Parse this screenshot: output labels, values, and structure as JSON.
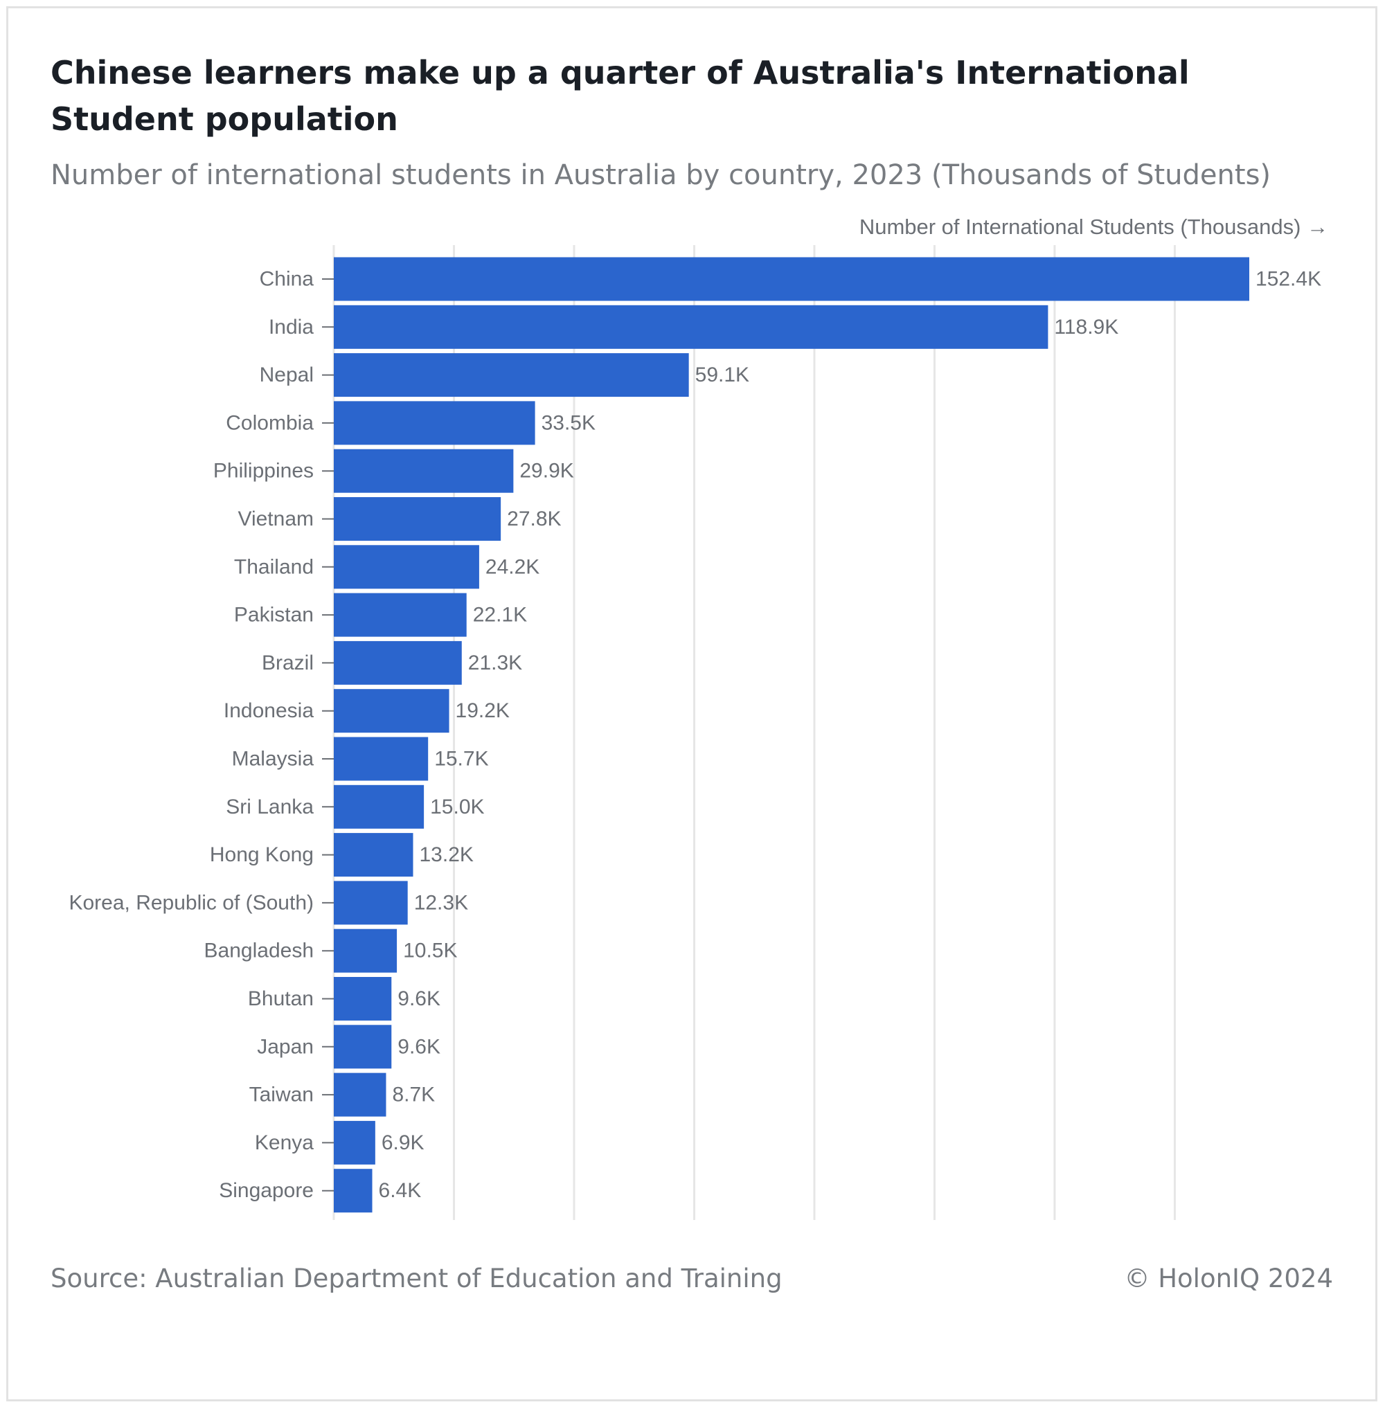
{
  "header": {
    "title": "Chinese learners make up a quarter of Australia's International Student population",
    "subtitle": "Number of international students in Australia by country, 2023 (Thousands of Students)"
  },
  "footer": {
    "source": "Source: Australian Department of Education and Training",
    "copyright": "© HolonIQ 2024"
  },
  "colors": {
    "bar": "#2b65cd",
    "grid": "#e6e6e6",
    "text": "#6b6f75",
    "title": "#1a1f26"
  },
  "chart_data": {
    "type": "bar",
    "orientation": "horizontal",
    "title": "Chinese learners make up a quarter of Australia's International Student population",
    "subtitle": "Number of international students in Australia by country, 2023 (Thousands of Students)",
    "xlabel": "Number of International Students (Thousands) →",
    "ylabel": "",
    "categories": [
      "China",
      "India",
      "Nepal",
      "Colombia",
      "Philippines",
      "Vietnam",
      "Thailand",
      "Pakistan",
      "Brazil",
      "Indonesia",
      "Malaysia",
      "Sri Lanka",
      "Hong Kong",
      "Korea, Republic of (South)",
      "Bangladesh",
      "Bhutan",
      "Japan",
      "Taiwan",
      "Kenya",
      "Singapore"
    ],
    "values": [
      152.4,
      118.9,
      59.1,
      33.5,
      29.9,
      27.8,
      24.2,
      22.1,
      21.3,
      19.2,
      15.7,
      15.0,
      13.2,
      12.3,
      10.5,
      9.6,
      9.6,
      8.7,
      6.9,
      6.4
    ],
    "value_labels": [
      "152.4K",
      "118.9K",
      "59.1K",
      "33.5K",
      "29.9K",
      "27.8K",
      "24.2K",
      "22.1K",
      "21.3K",
      "19.2K",
      "15.7K",
      "15.0K",
      "13.2K",
      "12.3K",
      "10.5K",
      "9.6K",
      "9.6K",
      "8.7K",
      "6.9K",
      "6.4K"
    ],
    "xlim": [
      0,
      160
    ],
    "x_grid_step": 20,
    "x_tick_labels_shown": false,
    "grid": true
  }
}
